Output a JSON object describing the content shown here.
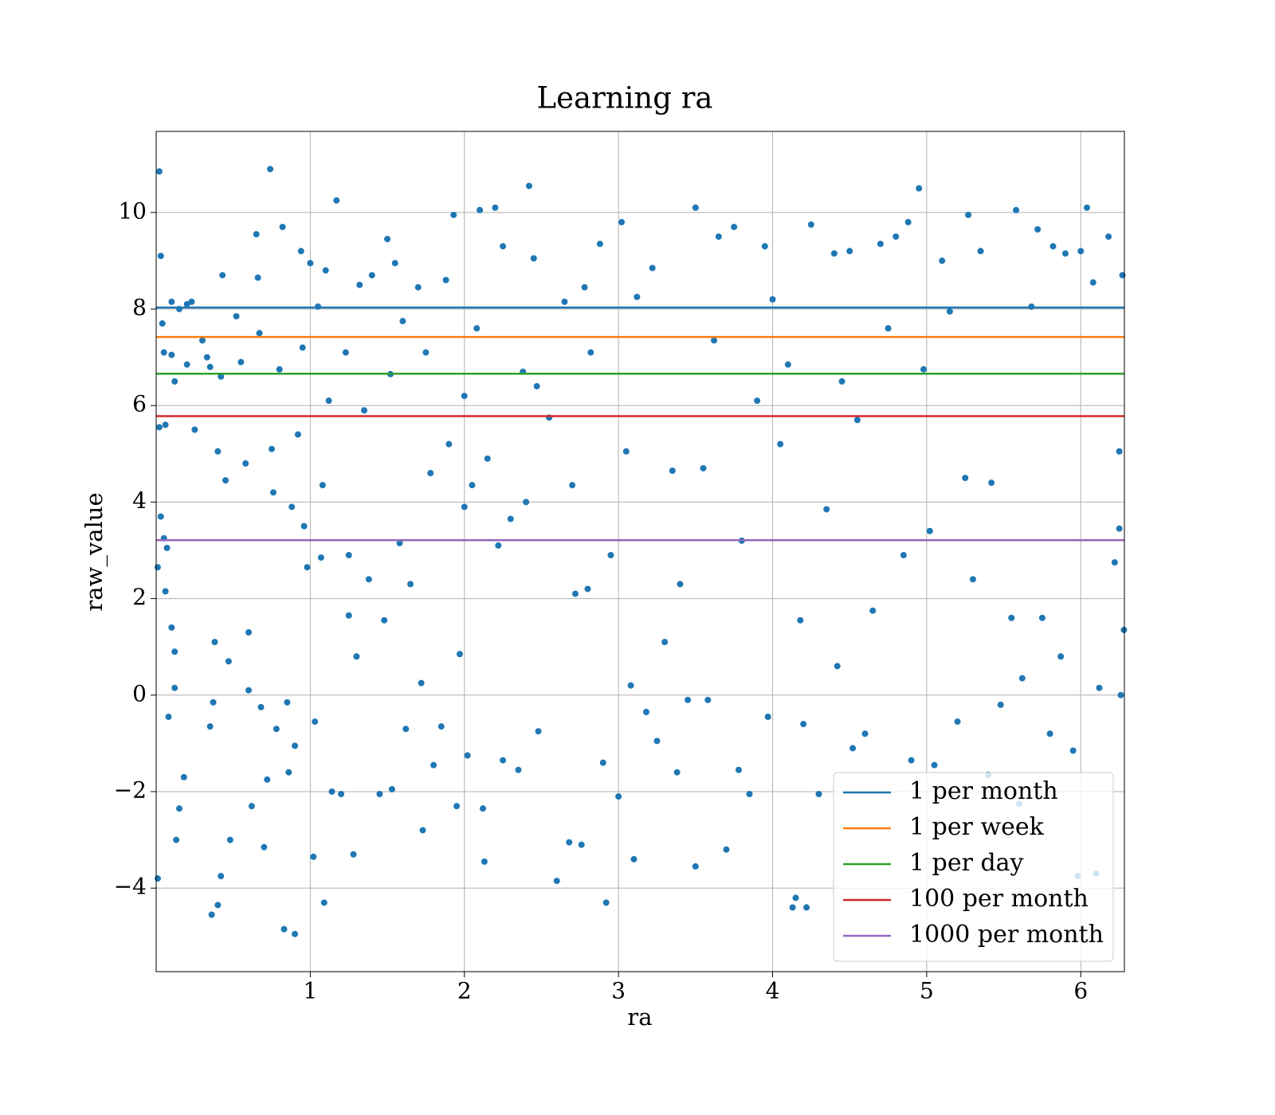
{
  "chart_data": {
    "type": "scatter",
    "title": "Learning ra",
    "x_label": "ra",
    "y_label": "raw_value",
    "xlim": [
      0,
      6.283
    ],
    "ylim": [
      -5.73,
      11.68
    ],
    "xticks": [
      1,
      2,
      3,
      4,
      5,
      6
    ],
    "yticks": [
      {
        "value": -4,
        "label": "−4"
      },
      {
        "value": -2,
        "label": "−2"
      },
      0,
      2,
      4,
      6,
      8,
      10
    ],
    "grid": true,
    "legend": "lower right",
    "series": [
      {
        "color": "#1f77b4",
        "x": [
          0.02,
          0.03,
          0.04,
          0.05,
          0.02,
          0.06,
          0.03,
          0.05,
          0.07,
          0.06,
          0.01,
          0.01,
          0.08,
          0.1,
          0.12,
          0.12,
          0.13,
          0.15,
          0.18,
          0.1,
          0.15,
          0.2,
          0.23,
          0.12,
          0.1,
          0.2,
          0.25,
          0.3,
          0.33,
          0.35,
          0.38,
          0.37,
          0.35,
          0.36,
          0.4,
          0.42,
          0.4,
          0.43,
          0.42,
          0.45,
          0.47,
          0.48,
          0.52,
          0.55,
          0.58,
          0.6,
          0.6,
          0.62,
          0.65,
          0.66,
          0.67,
          0.68,
          0.7,
          0.72,
          0.74,
          0.75,
          0.76,
          0.78,
          0.8,
          0.82,
          0.83,
          0.85,
          0.86,
          0.88,
          0.9,
          0.9,
          0.92,
          0.94,
          0.95,
          0.96,
          0.98,
          1.0,
          1.02,
          1.03,
          1.05,
          1.07,
          1.08,
          1.09,
          1.1,
          1.12,
          1.14,
          1.17,
          1.2,
          1.23,
          1.25,
          1.25,
          1.28,
          1.3,
          1.32,
          1.35,
          1.38,
          1.4,
          1.45,
          1.48,
          1.5,
          1.52,
          1.53,
          1.55,
          1.58,
          1.6,
          1.62,
          1.65,
          1.7,
          1.72,
          1.73,
          1.75,
          1.78,
          1.8,
          1.85,
          1.88,
          1.9,
          1.93,
          1.95,
          1.97,
          2.0,
          2.0,
          2.02,
          2.05,
          2.08,
          2.1,
          2.12,
          2.13,
          2.15,
          2.2,
          2.22,
          2.25,
          2.25,
          2.3,
          2.35,
          2.38,
          2.4,
          2.42,
          2.45,
          2.47,
          2.48,
          2.55,
          2.6,
          2.65,
          2.68,
          2.7,
          2.72,
          2.76,
          2.78,
          2.8,
          2.82,
          2.88,
          2.9,
          2.92,
          2.95,
          3.0,
          3.02,
          3.05,
          3.08,
          3.1,
          3.12,
          3.18,
          3.22,
          3.25,
          3.3,
          3.35,
          3.38,
          3.4,
          3.45,
          3.5,
          3.5,
          3.55,
          3.58,
          3.62,
          3.65,
          3.7,
          3.75,
          3.78,
          3.8,
          3.85,
          3.9,
          3.95,
          3.97,
          4.0,
          4.05,
          4.1,
          4.13,
          4.15,
          4.18,
          4.2,
          4.22,
          4.25,
          4.3,
          4.35,
          4.4,
          4.42,
          4.45,
          4.5,
          4.52,
          4.55,
          4.6,
          4.65,
          4.7,
          4.75,
          4.8,
          4.85,
          4.88,
          4.9,
          4.95,
          4.98,
          5.02,
          5.05,
          5.1,
          5.15,
          5.2,
          5.25,
          5.27,
          5.3,
          5.35,
          5.4,
          5.42,
          5.48,
          5.55,
          5.58,
          5.6,
          5.62,
          5.68,
          5.72,
          5.75,
          5.8,
          5.82,
          5.87,
          5.9,
          5.95,
          5.98,
          6.0,
          6.04,
          6.08,
          6.1,
          6.12,
          6.18,
          6.22,
          6.25,
          6.27,
          6.28,
          6.26,
          6.25
        ],
        "values": [
          10.85,
          9.1,
          7.7,
          7.1,
          5.55,
          5.6,
          3.7,
          3.25,
          3.05,
          2.15,
          2.65,
          -3.8,
          -0.45,
          1.4,
          0.9,
          0.15,
          -3.0,
          -2.35,
          -1.7,
          8.15,
          8.0,
          8.1,
          8.15,
          6.5,
          7.05,
          6.85,
          5.5,
          7.35,
          7.0,
          6.8,
          1.1,
          -0.15,
          -0.65,
          -4.55,
          -4.35,
          -3.75,
          5.05,
          8.7,
          6.6,
          4.45,
          0.7,
          -3.0,
          7.85,
          6.9,
          4.8,
          1.3,
          0.1,
          -2.3,
          9.55,
          8.65,
          7.5,
          -0.25,
          -3.15,
          -1.75,
          10.9,
          5.1,
          4.2,
          -0.7,
          6.75,
          9.7,
          -4.85,
          -0.15,
          -1.6,
          3.9,
          -4.95,
          -1.05,
          5.4,
          9.2,
          7.2,
          3.5,
          2.65,
          8.95,
          -3.35,
          -0.55,
          8.05,
          2.85,
          4.35,
          -4.3,
          8.8,
          6.1,
          -2.0,
          10.25,
          -2.05,
          7.1,
          2.9,
          1.65,
          -3.3,
          0.8,
          8.5,
          5.9,
          2.4,
          8.7,
          -2.05,
          1.55,
          9.45,
          6.65,
          -1.95,
          8.95,
          3.15,
          7.75,
          -0.7,
          2.3,
          8.45,
          0.25,
          -2.8,
          7.1,
          4.6,
          -1.45,
          -0.65,
          8.6,
          5.2,
          9.95,
          -2.3,
          0.85,
          3.9,
          6.2,
          -1.25,
          4.35,
          7.6,
          10.05,
          -2.35,
          -3.45,
          4.9,
          10.1,
          3.1,
          9.3,
          -1.35,
          3.65,
          -1.55,
          6.7,
          4.0,
          10.55,
          9.05,
          6.4,
          -0.75,
          5.75,
          -3.85,
          8.15,
          -3.05,
          4.35,
          2.1,
          -3.1,
          8.45,
          2.2,
          7.1,
          9.35,
          -1.4,
          -4.3,
          2.9,
          -2.1,
          9.8,
          5.05,
          0.2,
          -3.4,
          8.25,
          -0.35,
          8.85,
          -0.95,
          1.1,
          4.65,
          -1.6,
          2.3,
          -0.1,
          10.1,
          -3.55,
          4.7,
          -0.1,
          7.35,
          9.5,
          -3.2,
          9.7,
          -1.55,
          3.2,
          -2.05,
          6.1,
          9.3,
          -0.45,
          8.2,
          5.2,
          6.85,
          -4.4,
          -4.2,
          1.55,
          -0.6,
          -4.4,
          9.75,
          -2.05,
          3.85,
          9.15,
          0.6,
          6.5,
          9.2,
          -1.1,
          5.7,
          -0.8,
          1.75,
          9.35,
          7.6,
          9.5,
          2.9,
          9.8,
          -1.35,
          10.5,
          6.75,
          3.4,
          -1.45,
          9.0,
          7.95,
          -0.55,
          4.5,
          9.95,
          2.4,
          9.2,
          -1.65,
          4.4,
          -0.2,
          1.6,
          10.05,
          -2.25,
          0.35,
          8.05,
          9.65,
          1.6,
          -0.8,
          9.3,
          0.8,
          9.15,
          -1.15,
          -3.75,
          9.2,
          10.1,
          8.55,
          -3.7,
          0.15,
          9.5,
          2.75,
          3.45,
          8.7,
          1.35,
          0.0,
          5.05
        ]
      }
    ],
    "hlines": [
      {
        "name": "1 per month",
        "color": "#1f77b4",
        "value": 8.03
      },
      {
        "name": "1 per week",
        "color": "#ff7f0e",
        "value": 7.42
      },
      {
        "name": "1 per day",
        "color": "#2ca02c",
        "value": 6.66
      },
      {
        "name": "100 per month",
        "color": "#d62728",
        "value": 5.78
      },
      {
        "name": "1000 per month",
        "color": "#9467bd",
        "value": 3.21
      }
    ]
  }
}
